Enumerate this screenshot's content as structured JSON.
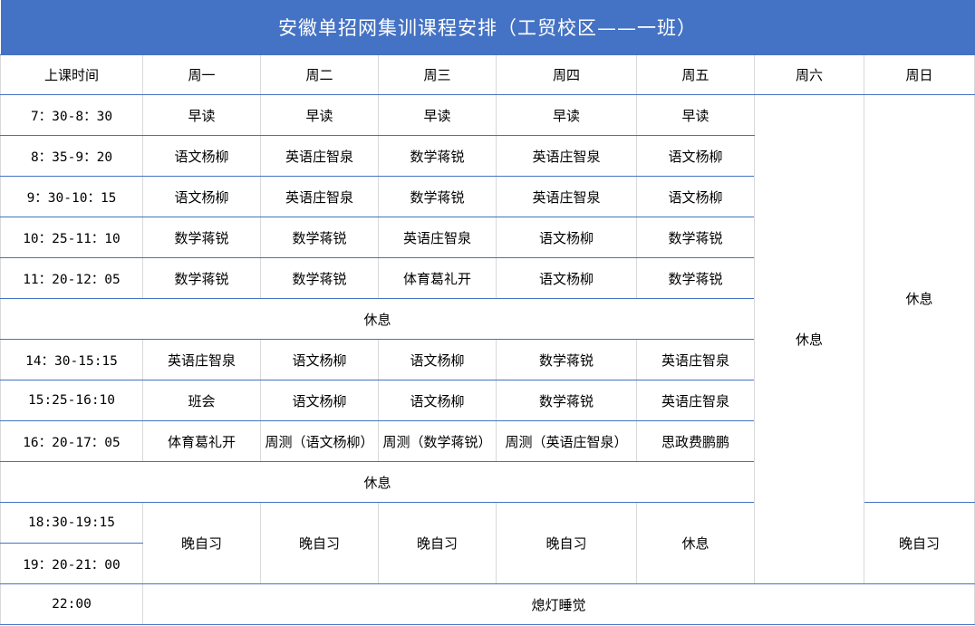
{
  "title": "安徽单招网集训课程安排（工贸校区——一班）",
  "headers": [
    "上课时间",
    "周一",
    "周二",
    "周三",
    "周四",
    "周五",
    "周六",
    "周日"
  ],
  "weekend": {
    "saturday": "休息",
    "sunday_day": "休息",
    "sunday_evening": "晚自习"
  },
  "morning_rows": [
    {
      "time": "7：30-8：30",
      "cells": [
        "早读",
        "早读",
        "早读",
        "早读",
        "早读"
      ]
    },
    {
      "time": "8：35-9：20",
      "cells": [
        "语文杨柳",
        "英语庄智泉",
        "数学蒋锐",
        "英语庄智泉",
        "语文杨柳"
      ]
    },
    {
      "time": "9：30-10：15",
      "cells": [
        "语文杨柳",
        "英语庄智泉",
        "数学蒋锐",
        "英语庄智泉",
        "语文杨柳"
      ]
    },
    {
      "time": "10：25-11：10",
      "cells": [
        "数学蒋锐",
        "数学蒋锐",
        "英语庄智泉",
        "语文杨柳",
        "数学蒋锐"
      ]
    },
    {
      "time": "11：20-12：05",
      "cells": [
        "数学蒋锐",
        "数学蒋锐",
        "体育葛礼开",
        "语文杨柳",
        "数学蒋锐"
      ]
    }
  ],
  "noon_break": "休息",
  "afternoon_rows": [
    {
      "time": "14：30-15:15",
      "cells": [
        "英语庄智泉",
        "语文杨柳",
        "语文杨柳",
        "数学蒋锐",
        "英语庄智泉"
      ]
    },
    {
      "time": "15:25-16:10",
      "cells": [
        "班会",
        "语文杨柳",
        "语文杨柳",
        "数学蒋锐",
        "英语庄智泉"
      ]
    },
    {
      "time": "16：20-17：05",
      "cells": [
        "体育葛礼开",
        "周测（语文杨柳）",
        "周测（数学蒋锐）",
        "周测（英语庄智泉）",
        "思政费鹏鹏"
      ]
    }
  ],
  "evening_break": "休息",
  "evening_times": [
    "18:30-19:15",
    "19：20-21：00"
  ],
  "evening_cells": [
    "晚自习",
    "晚自习",
    "晚自习",
    "晚自习",
    "休息"
  ],
  "night": {
    "time": "22:00",
    "activity": "熄灯睡觉"
  },
  "colors": {
    "accent": "#4472C4"
  }
}
